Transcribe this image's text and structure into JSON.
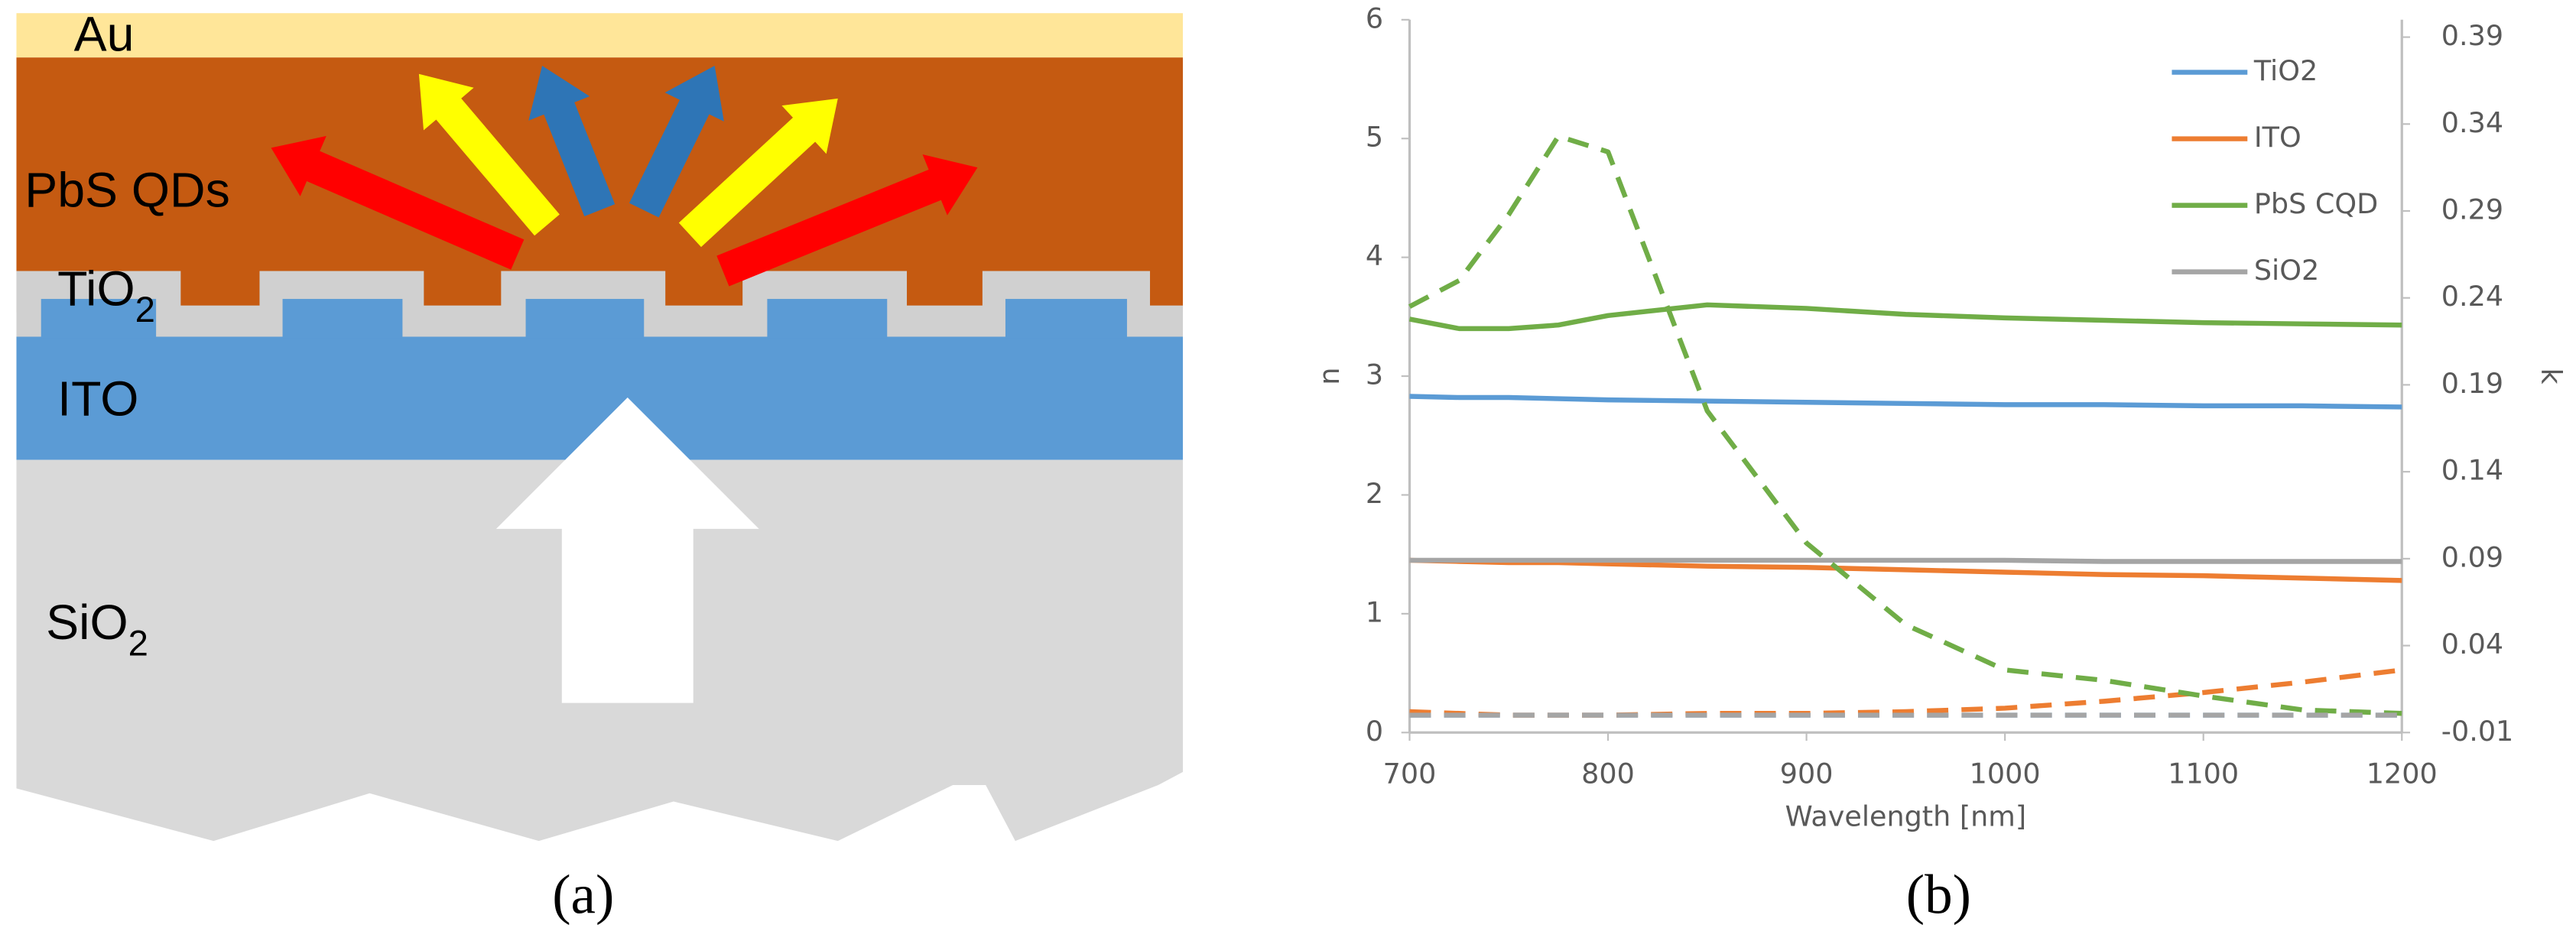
{
  "diagram": {
    "layers": [
      {
        "text": "Au"
      },
      {
        "text": "PbS QDs"
      },
      {
        "text": "TiO",
        "subscript": "2"
      },
      {
        "text": "ITO"
      },
      {
        "text": "SiO",
        "subscript": "2"
      }
    ],
    "captions": [
      "(a)",
      "(b)"
    ]
  },
  "chart_data": {
    "type": "line",
    "x_label": "Wavelength [nm]",
    "y_label": "n",
    "y2_label": "k",
    "x": [
      700,
      725,
      750,
      775,
      800,
      850,
      900,
      950,
      1000,
      1050,
      1100,
      1150,
      1200
    ],
    "xlim": [
      700,
      1200
    ],
    "xticks": [
      700,
      800,
      900,
      1000,
      1100,
      1200
    ],
    "ylim": [
      0,
      6
    ],
    "yticks": [
      0,
      1,
      2,
      3,
      4,
      5,
      6
    ],
    "y2lim": [
      -0.01,
      0.4
    ],
    "y2ticks": [
      -0.01,
      0.04,
      0.09,
      0.14,
      0.19,
      0.24,
      0.29,
      0.34,
      0.39
    ],
    "grid": false,
    "legend": "upper right",
    "series": [
      {
        "name": "TiO2",
        "color": "#5b9bd5",
        "values": [
          2.83,
          2.82,
          2.82,
          2.81,
          2.8,
          2.79,
          2.78,
          2.77,
          2.76,
          2.76,
          2.75,
          2.75,
          2.74
        ]
      },
      {
        "name": "ITO",
        "color": "#ed7d31",
        "values": [
          1.45,
          1.44,
          1.43,
          1.43,
          1.42,
          1.4,
          1.39,
          1.37,
          1.35,
          1.33,
          1.32,
          1.3,
          1.28
        ]
      },
      {
        "name": "PbS CQD",
        "color": "#70ad47",
        "values": [
          3.48,
          3.4,
          3.4,
          3.43,
          3.51,
          3.6,
          3.57,
          3.52,
          3.49,
          3.47,
          3.45,
          3.44,
          3.43
        ]
      },
      {
        "name": "SiO2",
        "color": "#a5a5a5",
        "values": [
          1.45,
          1.45,
          1.45,
          1.45,
          1.45,
          1.45,
          1.45,
          1.45,
          1.45,
          1.44,
          1.44,
          1.44,
          1.44
        ]
      },
      {
        "color": "#5b9bd5",
        "axis": "y2",
        "dash": true,
        "values": [
          0.0,
          0.0,
          0.0,
          0.0,
          0.0,
          0.0,
          0.0,
          0.0,
          0.0,
          0.0,
          0.0,
          0.0,
          0.0
        ]
      },
      {
        "color": "#ed7d31",
        "axis": "y2",
        "dash": true,
        "values": [
          0.002,
          0.001,
          0.0,
          0.0,
          0.0,
          0.001,
          0.001,
          0.002,
          0.004,
          0.008,
          0.013,
          0.019,
          0.026
        ]
      },
      {
        "color": "#70ad47",
        "axis": "y2",
        "dash": true,
        "values": [
          0.235,
          0.25,
          0.288,
          0.333,
          0.324,
          0.175,
          0.099,
          0.052,
          0.026,
          0.02,
          0.011,
          0.003,
          0.001
        ]
      },
      {
        "color": "#a5a5a5",
        "axis": "y2",
        "dash": true,
        "values": [
          0.0,
          0.0,
          0.0,
          0.0,
          0.0,
          0.0,
          0.0,
          0.0,
          0.0,
          0.0,
          0.0,
          0.0,
          0.0
        ]
      }
    ]
  }
}
